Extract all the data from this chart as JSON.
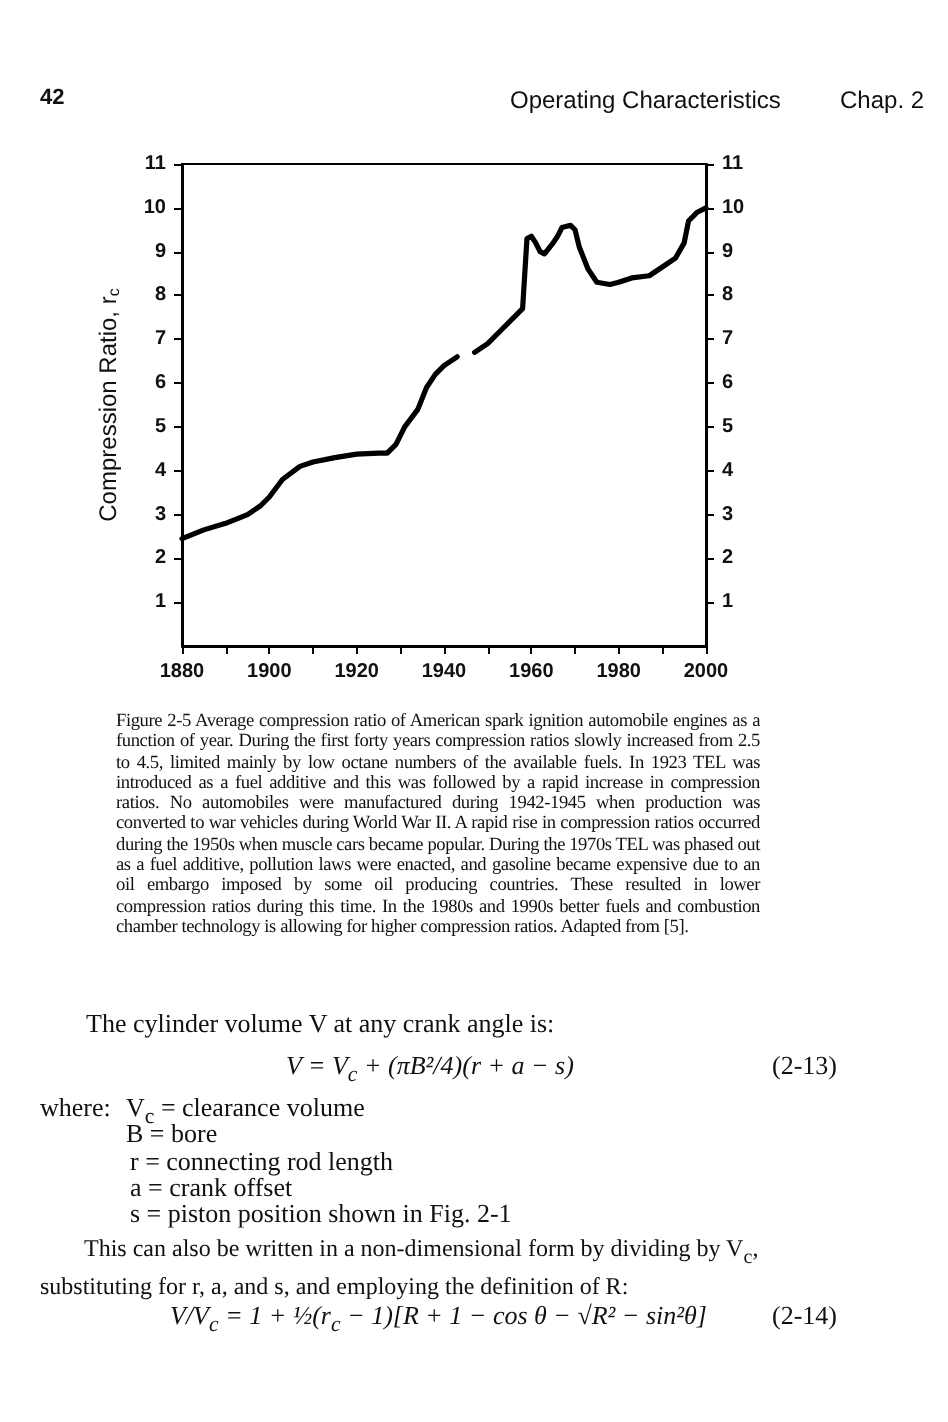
{
  "chart_data": {
    "type": "line",
    "ylabel": "Compression Ratio, r$_{c}$",
    "x": [
      1880,
      1885,
      1890,
      1895,
      1898,
      1900,
      1903,
      1907,
      1910,
      1915,
      1920,
      1925,
      1927,
      1929,
      1931,
      1934,
      1936,
      1938,
      1940,
      1943,
      1945,
      1947,
      1950,
      1953,
      1956,
      1958,
      1958.5,
      1959,
      1960,
      1961,
      1962,
      1963,
      1965,
      1966,
      1967,
      1969,
      1970,
      1971,
      1973,
      1975,
      1978,
      1980,
      1983,
      1987,
      1990,
      1993,
      1995,
      1996,
      1998,
      2000
    ],
    "values": [
      2.45,
      2.65,
      2.8,
      3.0,
      3.2,
      3.4,
      3.8,
      4.1,
      4.2,
      4.3,
      4.38,
      4.4,
      4.4,
      4.6,
      5.0,
      5.4,
      5.9,
      6.2,
      6.4,
      6.6,
      null,
      6.7,
      6.9,
      7.2,
      7.5,
      7.7,
      8.5,
      9.3,
      9.35,
      9.2,
      9.0,
      8.95,
      9.2,
      9.35,
      9.55,
      9.6,
      9.5,
      9.1,
      8.6,
      8.3,
      8.25,
      8.3,
      8.4,
      8.45,
      8.65,
      8.85,
      9.2,
      9.7,
      9.9,
      10.0
    ],
    "color": "#000000",
    "marker": "none",
    "line_style": "solid",
    "xlim": [
      1880,
      2000
    ],
    "xticks": [
      1880,
      {
        "value": 1890,
        "label": null
      },
      1900,
      {
        "value": 1910,
        "label": null
      },
      1920,
      {
        "value": 1930,
        "label": null
      },
      1940,
      {
        "value": 1950,
        "label": null
      },
      1960,
      {
        "value": 1970,
        "label": null
      },
      1980,
      {
        "value": 1990,
        "label": null
      },
      2000
    ],
    "ylim": [
      0,
      11
    ],
    "yticks": [
      1,
      2,
      3,
      4,
      5,
      6,
      7,
      8,
      9,
      10,
      11
    ],
    "y2lim": [
      0,
      11
    ],
    "y2ticks": [
      1,
      2,
      3,
      4,
      5,
      6,
      7,
      8,
      9,
      10,
      11
    ],
    "annotations": [
      "42",
      "Operating Characteristics",
      "Chap. 2",
      "Figure 2-5  Average compression ratio of American spark ignition automobile engines as a function of year. During the first forty years compression ratios slowly increased from 2.5 to 4.5, limited mainly by low octane numbers of the available fuels. In 1923 TEL was introduced as a fuel additive and this was followed by a rapid increase in compression ratios. No automobiles were manufactured during 1942-1945 when production was converted to war vehicles during World War II. A rapid rise in compression ratios occurred during the 1950s when muscle cars became popular. During the 1970s TEL was phased out as a fuel additive, pollution laws were enacted, and gasoline became expensive due to an oil embargo imposed by some oil producing countries. These resulted in lower compression ratios during this time. In the 1980s and 1990s better fuels and combustion chamber technology is allowing for higher compression ratios. Adapted from [5].",
      "The cylinder volume V at any crank angle is:",
      "V = V$_{c}$ + (πB²/4)(r + a − s)",
      "(2-13)",
      "where:",
      "V$_{c}$ = clearance volume",
      "B = bore",
      "r = connecting rod length",
      "a = crank offset",
      "s = piston position shown in Fig. 2-1",
      "This can also be written in a non-dimensional form by dividing by V$_{c}$, substituting for r, a, and s, and employing the definition of R:",
      "V/V$_{c}$ = 1 + ½(r$_{c}$ − 1)[R + 1 − cos θ − √R² − sin²θ]",
      "(2-14)"
    ]
  }
}
